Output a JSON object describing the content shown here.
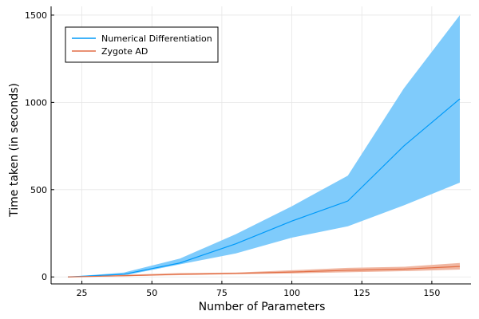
{
  "chart_data": {
    "type": "line",
    "xlabel": "Number of Parameters",
    "ylabel": "Time taken (in seconds)",
    "xlim": [
      14,
      164
    ],
    "ylim": [
      -40,
      1550
    ],
    "xticks": [
      25,
      50,
      75,
      100,
      125,
      150
    ],
    "yticks": [
      0,
      500,
      1000,
      1500
    ],
    "grid": true,
    "legend_position": "top-left",
    "series": [
      {
        "name": "Numerical Differentiation",
        "color": "#009af9",
        "band_color": "#7fcbfb",
        "x": [
          20,
          40,
          60,
          80,
          100,
          120,
          140,
          160
        ],
        "y": [
          0,
          15,
          80,
          190,
          320,
          435,
          750,
          1020
        ],
        "lower": [
          0,
          8,
          72,
          135,
          225,
          290,
          410,
          540
        ],
        "upper": [
          0,
          25,
          105,
          245,
          405,
          580,
          1080,
          1500
        ]
      },
      {
        "name": "Zygote AD",
        "color": "#e26f46",
        "band_color": "#f0b6a1",
        "x": [
          20,
          40,
          60,
          80,
          100,
          120,
          140,
          160
        ],
        "y": [
          0,
          7,
          15,
          20,
          28,
          38,
          45,
          60
        ],
        "lower": [
          0,
          4,
          10,
          16,
          20,
          27,
          33,
          42
        ],
        "upper": [
          0,
          12,
          22,
          25,
          38,
          52,
          58,
          80
        ]
      }
    ]
  }
}
